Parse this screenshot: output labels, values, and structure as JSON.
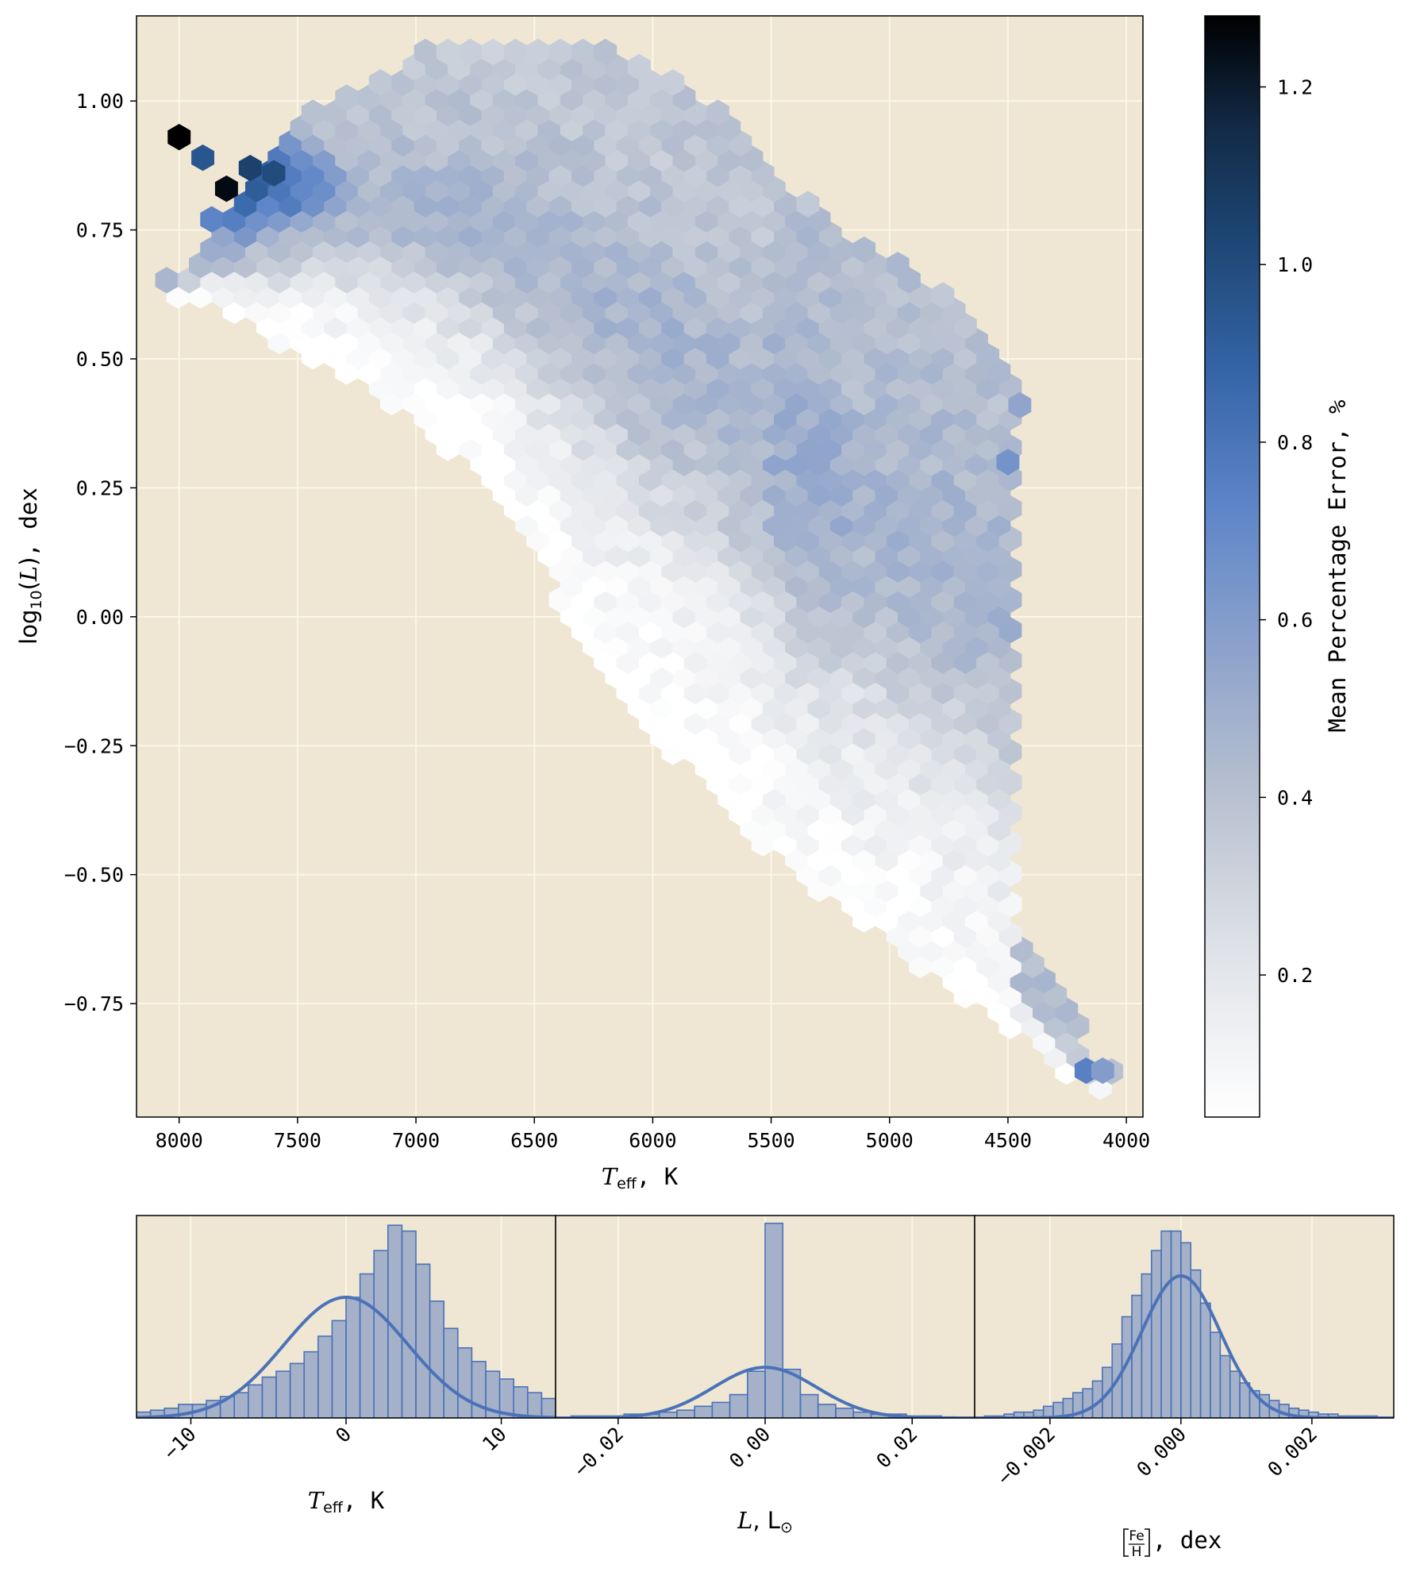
{
  "chart_data": [
    {
      "type": "heatmap",
      "subtype": "hexbin",
      "xlabel": "T_eff, K",
      "ylabel": "log10(L), dex",
      "x_axis_inverted": true,
      "xlim": [
        8180,
        3930
      ],
      "ylim": [
        -0.97,
        1.165
      ],
      "x_ticks": [
        8000,
        7500,
        7000,
        6500,
        6000,
        5500,
        5000,
        4500,
        4000
      ],
      "x_tick_labels": [
        "8000",
        "7500",
        "7000",
        "6500",
        "6000",
        "5500",
        "5000",
        "4500",
        "4000"
      ],
      "y_ticks": [
        1.0,
        0.75,
        0.5,
        0.25,
        0.0,
        -0.25,
        -0.5,
        -0.75
      ],
      "y_tick_labels": [
        "1.00",
        "0.75",
        "0.50",
        "0.25",
        "0.00",
        "−0.25",
        "−0.50",
        "−0.75"
      ],
      "grid": true,
      "background_color": "#efe7d3",
      "colorbar": {
        "label": "Mean Percentage Error, %",
        "range": [
          0.04,
          1.28
        ],
        "ticks": [
          0.2,
          0.4,
          0.6,
          0.8,
          1.0,
          1.2
        ],
        "tick_labels": [
          "0.2",
          "0.4",
          "0.6",
          "0.8",
          "1.0",
          "1.2"
        ],
        "colors": [
          "#ffffff",
          "#d0d4dc",
          "#6a8dcc",
          "#3a6db0",
          "#1b3d66",
          "#000000"
        ]
      },
      "region": {
        "upper_left_boundary": [
          [
            8000,
            0.68
          ],
          [
            7850,
            0.78
          ],
          [
            7600,
            0.88
          ],
          [
            7450,
            0.99
          ],
          [
            7200,
            1.04
          ],
          [
            6950,
            1.1
          ],
          [
            6200,
            1.1
          ],
          [
            5750,
            1.0
          ],
          [
            5450,
            0.85
          ],
          [
            5200,
            0.75
          ],
          [
            4850,
            0.65
          ],
          [
            4550,
            0.55
          ],
          [
            4450,
            0.4
          ],
          [
            4550,
            0.28
          ],
          [
            4800,
            0.2
          ],
          [
            5050,
            0.17
          ],
          [
            5200,
            0.1
          ],
          [
            5300,
            0.05
          ],
          [
            5250,
            -0.1
          ],
          [
            5050,
            -0.25
          ],
          [
            4850,
            -0.35
          ],
          [
            4650,
            -0.5
          ],
          [
            4450,
            -0.62
          ],
          [
            4250,
            -0.75
          ],
          [
            4100,
            -0.88
          ]
        ],
        "lower_boundary": [
          [
            7950,
            0.62
          ],
          [
            7650,
            0.55
          ],
          [
            7300,
            0.47
          ],
          [
            7000,
            0.38
          ],
          [
            6700,
            0.26
          ],
          [
            6500,
            0.12
          ],
          [
            6300,
            -0.05
          ],
          [
            6100,
            -0.18
          ],
          [
            5800,
            -0.32
          ],
          [
            5500,
            -0.46
          ],
          [
            5200,
            -0.57
          ],
          [
            4950,
            -0.65
          ],
          [
            4700,
            -0.73
          ],
          [
            4450,
            -0.82
          ],
          [
            4150,
            -0.92
          ]
        ],
        "error_pattern": "Lowest error (~0.05%) along main-sequence band; moderate (~0.3%) across upper/right region; highest (>1.0%) at hottest, most luminous corner near Teff 7800-8000 K, log L 0.8-0.95"
      },
      "notable_bins": [
        {
          "teff": 8000,
          "logL": 0.93,
          "error": 1.28
        },
        {
          "teff": 7800,
          "logL": 0.83,
          "error": 1.25
        },
        {
          "teff": 7600,
          "logL": 0.86,
          "error": 1.0
        },
        {
          "teff": 7700,
          "logL": 0.87,
          "error": 1.05
        },
        {
          "teff": 7900,
          "logL": 0.89,
          "error": 0.95
        },
        {
          "teff": 4500,
          "logL": 0.3,
          "error": 0.65
        },
        {
          "teff": 4450,
          "logL": 0.41,
          "error": 0.55
        },
        {
          "teff": 4170,
          "logL": -0.88,
          "error": 0.75
        },
        {
          "teff": 4100,
          "logL": -0.88,
          "error": 0.6
        }
      ]
    },
    {
      "type": "bar",
      "subtype": "histogram_with_fit",
      "xlabel": "T_eff, K",
      "xlim": [
        -13.5,
        13.5
      ],
      "x_ticks": [
        -10,
        0,
        10
      ],
      "x_tick_labels": [
        "−10",
        "0",
        "10"
      ],
      "bin_width": 0.9,
      "bin_start": -13.5,
      "values": [
        0.03,
        0.04,
        0.05,
        0.07,
        0.07,
        0.09,
        0.11,
        0.13,
        0.17,
        0.21,
        0.24,
        0.28,
        0.34,
        0.42,
        0.5,
        0.62,
        0.74,
        0.86,
        0.99,
        0.96,
        0.79,
        0.6,
        0.46,
        0.36,
        0.29,
        0.24,
        0.2,
        0.16,
        0.13,
        0.1,
        0.08,
        0.07
      ],
      "fit_curve": {
        "kind": "gaussian",
        "mean": 0,
        "sigma": 4.0,
        "peak": 0.62
      },
      "ylim": [
        0,
        1.04
      ],
      "bar_color": "#5a7bbf",
      "curve_color": "#4b72b8"
    },
    {
      "type": "bar",
      "subtype": "histogram_with_fit",
      "xlabel": "L, L_sun",
      "xlim": [
        -0.0285,
        0.0285
      ],
      "x_ticks": [
        -0.02,
        0.0,
        0.02
      ],
      "x_tick_labels": [
        "−0.02",
        "0.00",
        "0.02"
      ],
      "bin_width": 0.0024,
      "bin_start": -0.0288,
      "values": [
        0.0,
        0.01,
        0.01,
        0.01,
        0.02,
        0.02,
        0.03,
        0.04,
        0.06,
        0.08,
        0.12,
        0.24,
        1.0,
        0.25,
        0.12,
        0.07,
        0.05,
        0.03,
        0.02,
        0.02,
        0.01,
        0.01,
        0.0,
        0.0
      ],
      "fit_curve": {
        "kind": "gaussian",
        "mean": 0,
        "sigma": 0.007,
        "peak": 0.26
      },
      "ylim": [
        0,
        1.04
      ],
      "bar_color": "#5a7bbf",
      "curve_color": "#4b72b8"
    },
    {
      "type": "bar",
      "subtype": "histogram_with_fit",
      "xlabel": "[Fe/H], dex",
      "xlim": [
        -0.00315,
        0.00325
      ],
      "x_ticks": [
        -0.002,
        0.0,
        0.002
      ],
      "x_tick_labels": [
        "−0.002",
        "0.000",
        "0.002"
      ],
      "bin_width": 0.00015,
      "bin_start": -0.00315,
      "values": [
        0.0,
        0.01,
        0.01,
        0.02,
        0.03,
        0.03,
        0.04,
        0.06,
        0.08,
        0.1,
        0.13,
        0.15,
        0.19,
        0.26,
        0.38,
        0.52,
        0.63,
        0.74,
        0.86,
        0.96,
        0.96,
        0.9,
        0.76,
        0.59,
        0.44,
        0.32,
        0.24,
        0.18,
        0.14,
        0.12,
        0.09,
        0.07,
        0.05,
        0.04,
        0.03,
        0.02,
        0.02,
        0.01,
        0.01,
        0.01,
        0.01,
        0.0
      ],
      "fit_curve": {
        "kind": "gaussian",
        "mean": 0,
        "sigma": 0.0006,
        "peak": 0.73
      },
      "ylim": [
        0,
        1.04
      ],
      "bar_color": "#5a7bbf",
      "curve_color": "#4b72b8"
    }
  ]
}
